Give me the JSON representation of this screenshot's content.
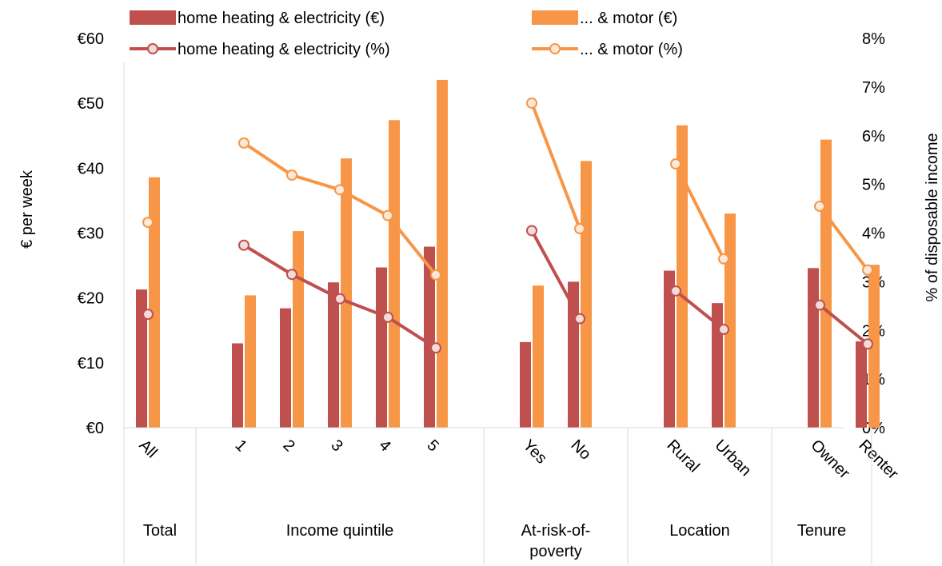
{
  "chart_data": {
    "type": "bar",
    "categories": [
      "All",
      "1",
      "2",
      "3",
      "4",
      "5",
      "Yes",
      "No",
      "Rural",
      "Urban",
      "Owner",
      "Renter"
    ],
    "groups": [
      {
        "label": "Total",
        "categories": [
          "All"
        ]
      },
      {
        "label": "Income quintile",
        "categories": [
          "1",
          "2",
          "3",
          "4",
          "5"
        ]
      },
      {
        "label": "At-risk-of-poverty",
        "categories": [
          "Yes",
          "No"
        ]
      },
      {
        "label": "Location",
        "categories": [
          "Rural",
          "Urban"
        ]
      },
      {
        "label": "Tenure",
        "categories": [
          "Owner",
          "Renter"
        ]
      }
    ],
    "series": [
      {
        "name": "home heating & electricity (€)",
        "type": "bar",
        "axis": "left",
        "color": "#C0504D",
        "values": [
          21.3,
          13.0,
          18.4,
          22.4,
          24.7,
          27.9,
          13.2,
          22.5,
          24.2,
          19.2,
          24.6,
          13.3
        ]
      },
      {
        "name": "... & motor (€)",
        "type": "bar",
        "axis": "left",
        "color": "#F79646",
        "values": [
          38.6,
          20.4,
          30.3,
          41.5,
          47.4,
          53.6,
          21.9,
          41.1,
          46.6,
          33.0,
          44.4,
          25.1
        ]
      },
      {
        "name": "home heating & electricity (%)",
        "type": "line",
        "axis": "right",
        "color": "#C0504D",
        "values": [
          2.33,
          3.75,
          3.15,
          2.65,
          2.27,
          1.64,
          4.05,
          2.24,
          2.81,
          2.02,
          2.52,
          1.72
        ]
      },
      {
        "name": "... & motor (%)",
        "type": "line",
        "axis": "right",
        "color": "#F79646",
        "values": [
          4.22,
          5.85,
          5.19,
          4.89,
          4.36,
          3.14,
          6.67,
          4.09,
          5.42,
          3.47,
          4.55,
          3.24
        ]
      }
    ],
    "y_left": {
      "label": "€ per week",
      "min": 0,
      "max": 60,
      "step": 10,
      "ticks": [
        "€0",
        "€10",
        "€20",
        "€30",
        "€40",
        "€50",
        "€60"
      ]
    },
    "y_right": {
      "label": "% of disposable income",
      "min": 0,
      "max": 8,
      "step": 1,
      "ticks": [
        "0%",
        "1%",
        "2%",
        "3%",
        "4%",
        "5%",
        "6%",
        "7%",
        "8%"
      ]
    },
    "legend_position": "top",
    "grid": false
  }
}
